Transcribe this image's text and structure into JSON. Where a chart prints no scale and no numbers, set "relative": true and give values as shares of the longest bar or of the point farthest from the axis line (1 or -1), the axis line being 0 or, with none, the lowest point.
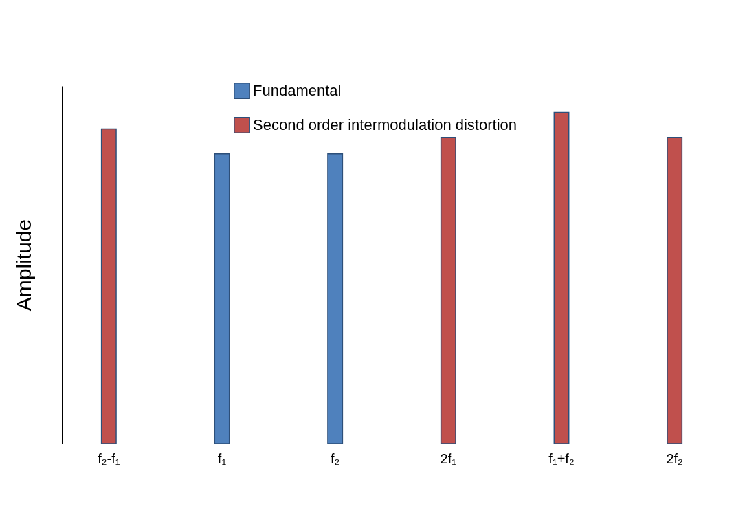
{
  "chart_data": {
    "type": "bar",
    "relative": true,
    "ylabel": "Amplitude",
    "categories": [
      "f₂-f₁",
      "f₁",
      "f₂",
      "2f₁",
      "f₁+f₂",
      "2f₂"
    ],
    "series": [
      {
        "name": "Fundamental",
        "color": "#4f81bd",
        "values": [
          null,
          0.875,
          0.875,
          null,
          null,
          null
        ]
      },
      {
        "name": "Second order  intermodulation distortion",
        "color": "#c0504d",
        "values": [
          0.95,
          null,
          null,
          0.925,
          1,
          0.925
        ]
      }
    ],
    "legend": "top left"
  }
}
